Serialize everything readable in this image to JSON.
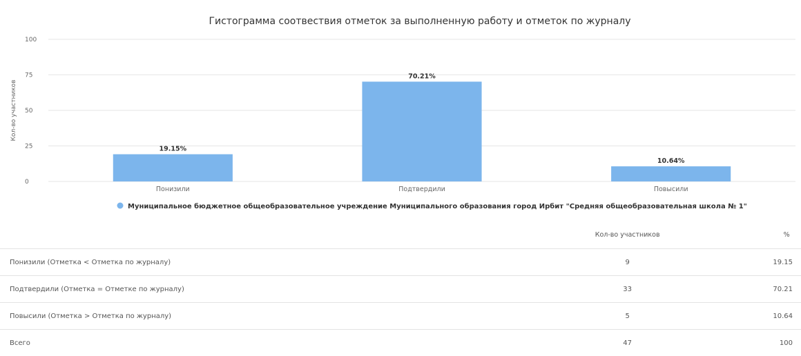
{
  "chart_data": {
    "type": "bar",
    "title": "Гистограмма соотвествия отметок за выполненную работу и отметок по журналу",
    "ylabel": "Кол-во участников",
    "xlabel": "",
    "ylim": [
      0,
      100
    ],
    "yticks": [
      "100",
      "75",
      "50",
      "25",
      "0"
    ],
    "categories": [
      "Понизили",
      "Подтвердили",
      "Повысили"
    ],
    "series": [
      {
        "name": "Муниципальное бюджетное общеобразовательное учреждение Муниципального образования город Ирбит \"Средняя общеобразовательная школа № 1\"",
        "values": [
          19.15,
          70.21,
          10.64
        ],
        "labels": [
          "19.15%",
          "70.21%",
          "10.64%"
        ],
        "color": "#7cb5ec"
      }
    ],
    "grid": true,
    "legend_position": "bottom"
  },
  "table": {
    "headers": {
      "label": "",
      "count": "Кол-во участников",
      "percent": "%"
    },
    "rows": [
      {
        "label": "Понизили (Отметка < Отметка по журналу)",
        "count": "9",
        "percent": "19.15"
      },
      {
        "label": "Подтвердили (Отметка = Отметке по журналу)",
        "count": "33",
        "percent": "70.21"
      },
      {
        "label": "Повысили (Отметка > Отметка по журналу)",
        "count": "5",
        "percent": "10.64"
      },
      {
        "label": "Всего",
        "count": "47",
        "percent": "100"
      }
    ]
  }
}
